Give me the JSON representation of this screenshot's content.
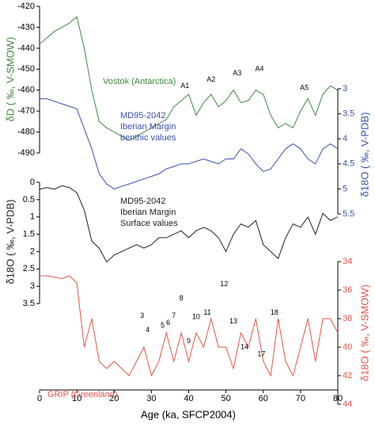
{
  "chart_data": {
    "type": "line",
    "xlabel": "Age (ka, SFCP2004)",
    "xlim": [
      0,
      80
    ],
    "xticks": [
      0,
      10,
      20,
      30,
      40,
      50,
      60,
      70,
      80
    ],
    "x": [
      0,
      2,
      4,
      6,
      8,
      10,
      12,
      14,
      16,
      18,
      20,
      22,
      24,
      26,
      28,
      30,
      32,
      34,
      36,
      38,
      40,
      42,
      44,
      46,
      48,
      50,
      52,
      54,
      56,
      58,
      60,
      62,
      64,
      66,
      68,
      70,
      72,
      74,
      76,
      78,
      80
    ],
    "panels": [
      {
        "ylabel": "δD ( ‰, V-SMOW)",
        "side": "left",
        "color": "#3d8b3d",
        "ylim": [
          -420,
          -490
        ],
        "yticks": [
          -420,
          -430,
          -440,
          -450,
          -460,
          -470,
          -480,
          -490
        ],
        "label_lines": [
          "Vostok (Antarctica)"
        ],
        "values": [
          -438,
          -435,
          -432,
          -430,
          -428,
          -425,
          -440,
          -460,
          -475,
          -478,
          -480,
          -482,
          -484,
          -482,
          -480,
          -478,
          -476,
          -474,
          -468,
          -465,
          -462,
          -472,
          -466,
          -462,
          -468,
          -465,
          -460,
          -466,
          -465,
          -460,
          -462,
          -472,
          -478,
          -476,
          -478,
          -470,
          -464,
          -472,
          -462,
          -458,
          -460
        ],
        "annotations": [
          {
            "text": "A1",
            "x": 39,
            "y": -458
          },
          {
            "text": "A2",
            "x": 46,
            "y": -455
          },
          {
            "text": "A3",
            "x": 53,
            "y": -452
          },
          {
            "text": "A4",
            "x": 59,
            "y": -450
          },
          {
            "text": "A5",
            "x": 71,
            "y": -459
          }
        ]
      },
      {
        "ylabel": "δ18O ( ‰, V-PDB)",
        "side": "right",
        "color": "#3a4fb0",
        "ylim": [
          3,
          5.5
        ],
        "yticks": [
          3,
          3.5,
          4,
          4.5,
          5,
          5.5
        ],
        "label_lines": [
          "MD95-2042",
          "Iberian Margin",
          "benthic values"
        ],
        "values": [
          3.2,
          3.2,
          3.25,
          3.3,
          3.35,
          3.4,
          3.8,
          4.2,
          4.7,
          4.9,
          5.0,
          4.95,
          4.9,
          4.85,
          4.8,
          4.75,
          4.7,
          4.6,
          4.55,
          4.5,
          4.5,
          4.45,
          4.4,
          4.45,
          4.5,
          4.4,
          4.4,
          4.2,
          4.3,
          4.5,
          4.65,
          4.6,
          4.4,
          4.2,
          4.1,
          4.2,
          4.4,
          4.5,
          4.2,
          4.1,
          4.2
        ],
        "annotations": []
      },
      {
        "ylabel": "δ18O ( ‰, V-PDB)",
        "side": "left",
        "color": "#222222",
        "ylim": [
          0,
          3.5
        ],
        "yticks": [
          0,
          0.5,
          1,
          1.5,
          2,
          2.5,
          3,
          3.5
        ],
        "label_lines": [
          "MD95-2042",
          "Iberian Margin",
          "Surface values"
        ],
        "values": [
          0.2,
          0.15,
          0.2,
          0.1,
          0.15,
          0.3,
          0.8,
          1.7,
          1.9,
          2.3,
          2.1,
          2.0,
          1.9,
          1.8,
          1.9,
          1.8,
          1.6,
          1.6,
          1.5,
          1.4,
          1.6,
          1.4,
          1.3,
          1.4,
          1.6,
          2.0,
          1.5,
          1.2,
          1.3,
          1.1,
          1.8,
          2.0,
          2.2,
          1.6,
          1.2,
          1.3,
          1.0,
          1.5,
          0.9,
          1.1,
          1.0
        ],
        "annotations": []
      },
      {
        "ylabel": "δ18O ( ‰, V-SMOW)",
        "side": "right",
        "color": "#e8544a",
        "ylim": [
          34,
          44
        ],
        "yticks": [
          34,
          36,
          38,
          40,
          42,
          44
        ],
        "label_lines": [
          "GRIP (Greenland)"
        ],
        "values": [
          35,
          35,
          35.1,
          35.2,
          35,
          35.5,
          40,
          38,
          41,
          41.5,
          41,
          41.5,
          42,
          41,
          40,
          42,
          41,
          39,
          41,
          39,
          41,
          39,
          40,
          38,
          40,
          40,
          41.5,
          39,
          40,
          38,
          41,
          42,
          38,
          41,
          42,
          40,
          38,
          41,
          38,
          38,
          39
        ],
        "annotations": [
          {
            "text": "3",
            "x": 27.5,
            "y": 37.8
          },
          {
            "text": "4",
            "x": 29,
            "y": 38.8
          },
          {
            "text": "5",
            "x": 33,
            "y": 38.5
          },
          {
            "text": "6",
            "x": 34.5,
            "y": 38.3
          },
          {
            "text": "7",
            "x": 36,
            "y": 37.8
          },
          {
            "text": "8",
            "x": 38,
            "y": 36.6
          },
          {
            "text": "9",
            "x": 40,
            "y": 39.6
          },
          {
            "text": "10",
            "x": 42,
            "y": 37.9
          },
          {
            "text": "11",
            "x": 45,
            "y": 37.6
          },
          {
            "text": "12",
            "x": 49.5,
            "y": 35.6
          },
          {
            "text": "13",
            "x": 52,
            "y": 38.2
          },
          {
            "text": "14",
            "x": 55,
            "y": 40
          },
          {
            "text": "17",
            "x": 59.5,
            "y": 40.5
          },
          {
            "text": "18",
            "x": 63,
            "y": 37.6
          }
        ]
      }
    ]
  }
}
